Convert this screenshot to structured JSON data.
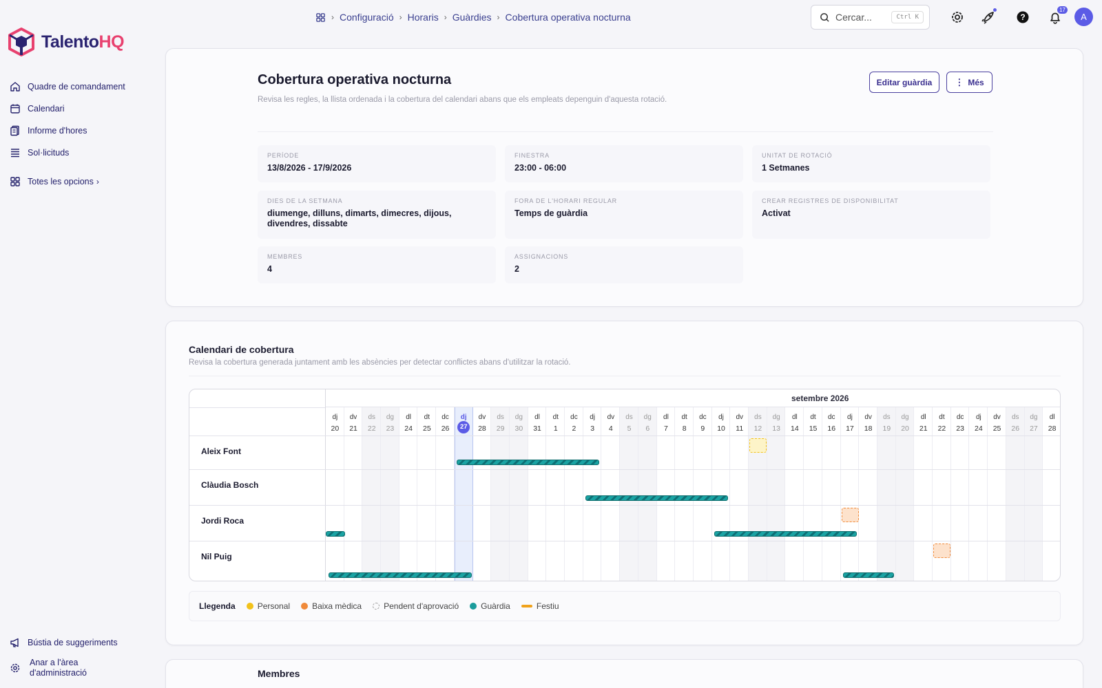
{
  "app": {
    "name_a": "Talento",
    "name_b": "HQ",
    "brand_color": "#2a2370",
    "accent_color": "#e8416f"
  },
  "sidebar": {
    "items": [
      {
        "label": "Quadre de comandament",
        "icon": "home-icon"
      },
      {
        "label": "Calendari",
        "icon": "calendar-icon"
      },
      {
        "label": "Informe d'hores",
        "icon": "report-icon"
      },
      {
        "label": "Sol·licituds",
        "icon": "list-icon"
      }
    ],
    "more_label": "Totes les opcions",
    "bottom": [
      {
        "label": "Bústia de suggeriments",
        "icon": "megaphone-icon"
      },
      {
        "label_1": "Anar a l'àrea",
        "label_2": "d'administració",
        "icon": "gear-icon"
      }
    ]
  },
  "breadcrumb": {
    "items": [
      "Configuració",
      "Horaris",
      "Guàrdies"
    ],
    "current": "Cobertura operativa nocturna"
  },
  "search": {
    "placeholder": "Cercar...",
    "shortcut": "Ctrl K"
  },
  "notifications": {
    "count": "17"
  },
  "user": {
    "initial": "A"
  },
  "header": {
    "title": "Cobertura operativa nocturna",
    "subtitle": "Revisa les regles, la llista ordenada i la cobertura del calendari abans que els empleats depenguin d'aquesta rotació.",
    "edit_label": "Editar guàrdia",
    "more_label": "Més"
  },
  "details": {
    "period": {
      "label": "Període",
      "value": "13/8/2026 - 17/9/2026"
    },
    "window": {
      "label": "Finestra",
      "value": "23:00 - 06:00"
    },
    "rotation": {
      "label": "Unitat de rotació",
      "value": "1 Setmanes"
    },
    "days": {
      "label": "Dies de la setmana",
      "value": "diumenge, dilluns, dimarts, dimecres, dijous, divendres, dissabte"
    },
    "outside": {
      "label": "Fora de l'horari regular",
      "value": "Temps de guàrdia"
    },
    "availability": {
      "label": "Crear registres de disponibilitat",
      "value": "Activat"
    },
    "members": {
      "label": "Membres",
      "value": "4"
    },
    "assignments": {
      "label": "Assignacions",
      "value": "2"
    }
  },
  "coverage": {
    "title": "Calendari de cobertura",
    "subtitle": "Revisa la cobertura generada juntament amb les absències per detectar conflictes abans d'utilitzar la rotació.",
    "month": "setembre 2026",
    "days": [
      {
        "dow": "dj",
        "d": "20"
      },
      {
        "dow": "dv",
        "d": "21"
      },
      {
        "dow": "ds",
        "d": "22",
        "we": true
      },
      {
        "dow": "dg",
        "d": "23",
        "we": true
      },
      {
        "dow": "dl",
        "d": "24"
      },
      {
        "dow": "dt",
        "d": "25"
      },
      {
        "dow": "dc",
        "d": "26"
      },
      {
        "dow": "dj",
        "d": "27",
        "today": true
      },
      {
        "dow": "dv",
        "d": "28"
      },
      {
        "dow": "ds",
        "d": "29",
        "we": true
      },
      {
        "dow": "dg",
        "d": "30",
        "we": true
      },
      {
        "dow": "dl",
        "d": "31"
      },
      {
        "dow": "dt",
        "d": "1"
      },
      {
        "dow": "dc",
        "d": "2"
      },
      {
        "dow": "dj",
        "d": "3"
      },
      {
        "dow": "dv",
        "d": "4"
      },
      {
        "dow": "ds",
        "d": "5",
        "we": true
      },
      {
        "dow": "dg",
        "d": "6",
        "we": true
      },
      {
        "dow": "dl",
        "d": "7"
      },
      {
        "dow": "dt",
        "d": "8"
      },
      {
        "dow": "dc",
        "d": "9"
      },
      {
        "dow": "dj",
        "d": "10"
      },
      {
        "dow": "dv",
        "d": "11"
      },
      {
        "dow": "ds",
        "d": "12",
        "we": true
      },
      {
        "dow": "dg",
        "d": "13",
        "we": true
      },
      {
        "dow": "dl",
        "d": "14"
      },
      {
        "dow": "dt",
        "d": "15"
      },
      {
        "dow": "dc",
        "d": "16"
      },
      {
        "dow": "dj",
        "d": "17"
      },
      {
        "dow": "dv",
        "d": "18"
      },
      {
        "dow": "ds",
        "d": "19",
        "we": true
      },
      {
        "dow": "dg",
        "d": "20",
        "we": true
      },
      {
        "dow": "dl",
        "d": "21"
      },
      {
        "dow": "dt",
        "d": "22"
      },
      {
        "dow": "dc",
        "d": "23"
      },
      {
        "dow": "dj",
        "d": "24"
      },
      {
        "dow": "dv",
        "d": "25"
      },
      {
        "dow": "ds",
        "d": "26",
        "we": true
      },
      {
        "dow": "dg",
        "d": "27",
        "we": true
      },
      {
        "dow": "dl",
        "d": "28"
      }
    ],
    "rows": [
      {
        "name": "Aleix Font",
        "shifts": [
          [
            7,
            14
          ]
        ],
        "absences": [
          {
            "day": 23,
            "type": "personal"
          }
        ]
      },
      {
        "name": "Clàudia Bosch",
        "shifts": [
          [
            14,
            21
          ]
        ],
        "absences": []
      },
      {
        "name": "Jordi Roca",
        "shifts": [
          [
            0,
            0
          ],
          [
            21,
            28
          ]
        ],
        "absences": [
          {
            "day": 28,
            "type": "sick"
          }
        ]
      },
      {
        "name": "Nil Puig",
        "shifts": [
          [
            0,
            7
          ],
          [
            28,
            30
          ]
        ],
        "absences": [
          {
            "day": 33,
            "type": "sick"
          }
        ]
      }
    ]
  },
  "legend": {
    "title": "Llegenda",
    "items": [
      {
        "label": "Personal",
        "color": "#f2c21b",
        "kind": "dot"
      },
      {
        "label": "Baixa mèdica",
        "color": "#f08a3a",
        "kind": "dot"
      },
      {
        "label": "Pendent d'aprovació",
        "color": "#999999",
        "kind": "dashed"
      },
      {
        "label": "Guàrdia",
        "color": "#1a9c9c",
        "kind": "dot"
      },
      {
        "label": "Festiu",
        "color": "#f0a21b",
        "kind": "line"
      }
    ]
  },
  "members_section": {
    "title": "Membres"
  }
}
